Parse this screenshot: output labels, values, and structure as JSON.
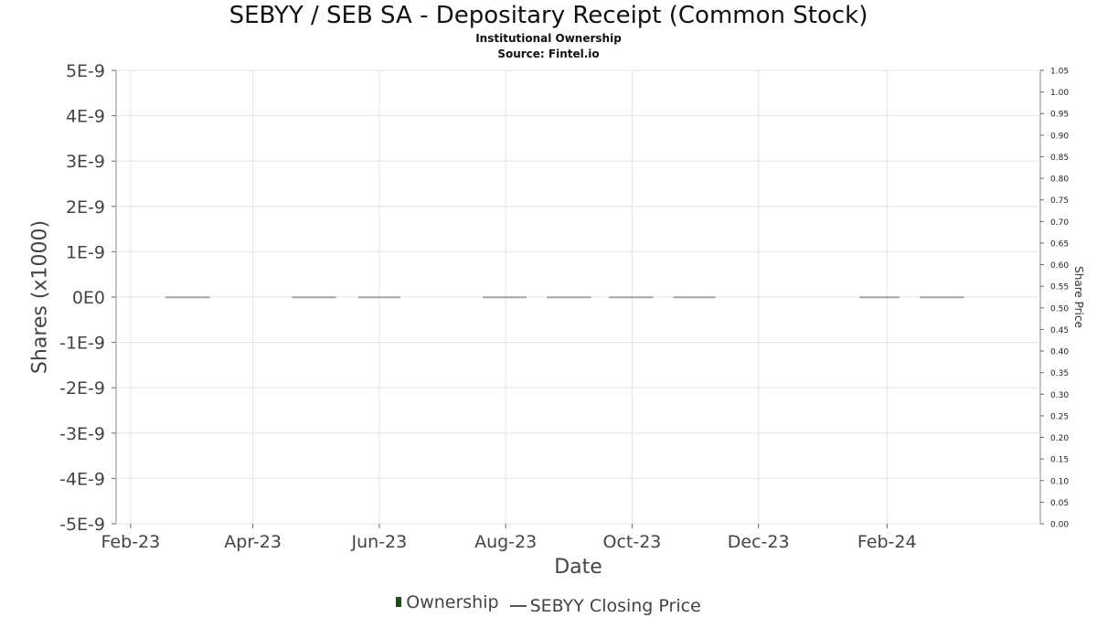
{
  "chart_data": {
    "type": "bar",
    "title": "SEBYY / SEB SA - Depositary Receipt (Common Stock)",
    "subtitle_1": "Institutional Ownership",
    "subtitle_2": "Source: Fintel.io",
    "xlabel": "Date",
    "ylabel": "Shares (x1000)",
    "ylabel_right": "Share Price",
    "x_ticks": [
      "Feb-23",
      "Apr-23",
      "Jun-23",
      "Aug-23",
      "Oct-23",
      "Dec-23",
      "Feb-24"
    ],
    "y_ticks": [
      "5E-9",
      "4E-9",
      "3E-9",
      "2E-9",
      "1E-9",
      "0E0",
      "-1E-9",
      "-2E-9",
      "-3E-9",
      "-4E-9",
      "-5E-9"
    ],
    "y_right_ticks": [
      "1.05",
      "1.00",
      "0.95",
      "0.90",
      "0.85",
      "0.80",
      "0.75",
      "0.70",
      "0.65",
      "0.60",
      "0.55",
      "0.50",
      "0.45",
      "0.40",
      "0.35",
      "0.30",
      "0.25",
      "0.20",
      "0.15",
      "0.10",
      "0.05",
      "0.00"
    ],
    "ylim": [
      -5e-09,
      5e-09
    ],
    "y_right_lim": [
      0,
      1.05
    ],
    "xlim": [
      "2023-01-25",
      "2024-04-15"
    ],
    "grid": true,
    "legend_position": "bottom-center",
    "series": [
      {
        "name": "Ownership",
        "color": "#1d4d1a",
        "x_start": [
          "2023-02-18",
          "2023-04-20",
          "2023-05-22",
          "2023-07-21",
          "2023-08-21",
          "2023-09-20",
          "2023-10-21",
          "2024-01-19",
          "2024-02-17"
        ],
        "x_end": [
          "2023-03-11",
          "2023-05-11",
          "2023-06-11",
          "2023-08-11",
          "2023-09-11",
          "2023-10-11",
          "2023-11-10",
          "2024-02-07",
          "2024-03-09"
        ],
        "values": [
          0,
          0,
          0,
          0,
          0,
          0,
          0,
          0,
          0
        ]
      },
      {
        "name": "SEBYY Closing Price",
        "color": "#555555",
        "x": [],
        "values": []
      }
    ]
  }
}
